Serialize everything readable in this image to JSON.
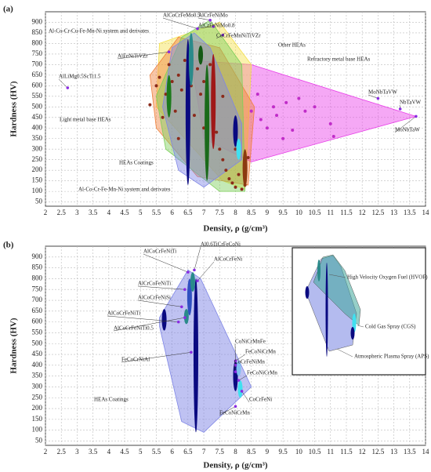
{
  "chart_data": [
    {
      "type": "scatter",
      "panel_label": "(a)",
      "xlabel": "Density, ρ (g/cm³)",
      "ylabel": "Hardness (HV)",
      "xlim": [
        2,
        14
      ],
      "ylim": [
        30,
        950
      ],
      "xticks": [
        2,
        2.5,
        3,
        3.5,
        4,
        4.5,
        5,
        5.5,
        6,
        6.5,
        7,
        7.5,
        8,
        8.5,
        9,
        9.5,
        10,
        10.5,
        11,
        11.5,
        12,
        12.5,
        13,
        13.5,
        14
      ],
      "yticks": [
        50,
        100,
        150,
        200,
        250,
        300,
        350,
        400,
        450,
        500,
        550,
        600,
        650,
        700,
        750,
        800,
        850,
        900
      ],
      "grid": true,
      "region_opacity": 0.45,
      "regions": [
        {
          "name": "Refractory metal base HEAs",
          "color": "#e83ee8",
          "x": [
            6.6,
            8.5,
            13.7,
            8.5,
            7
          ],
          "y": [
            720,
            700,
            455,
            240,
            350
          ]
        },
        {
          "name": "Other HEAs",
          "color": "#f5e04a",
          "x": [
            5.6,
            7.5,
            8.5,
            8.3,
            7.6,
            5.5
          ],
          "y": [
            800,
            900,
            700,
            110,
            150,
            500
          ]
        },
        {
          "name": "Al-Co-Cr-Cu-Fe-Mn-Ni system and derivates",
          "color": "#f0803c",
          "x": [
            5.3,
            6.2,
            7.5,
            8.6,
            8.4,
            6.8,
            5.5
          ],
          "y": [
            650,
            830,
            780,
            500,
            130,
            170,
            400
          ]
        },
        {
          "name": "Al-Co-Cr-Fe-Mn-Ni system and derivates",
          "color": "#7ccf5a",
          "x": [
            5.5,
            6.3,
            7.2,
            8.2,
            8.3,
            7.5,
            5.8
          ],
          "y": [
            550,
            830,
            910,
            700,
            100,
            100,
            300
          ]
        },
        {
          "name": "HEAs Coatings",
          "color": "#7f86e6",
          "x": [
            5.7,
            6,
            6.7,
            7.2,
            8.2,
            8.2,
            7,
            6.2
          ],
          "y": [
            500,
            780,
            850,
            780,
            420,
            250,
            120,
            200
          ]
        }
      ],
      "point_groups": [
        {
          "color": "#8b2a1a",
          "x": [
            5.3,
            5.5,
            5.6,
            5.8,
            5.9,
            6,
            6.1,
            6.2,
            6.3,
            6.4,
            6.5,
            6.6,
            6.7,
            6.8,
            6.9,
            7,
            7.1,
            7.2,
            7.3,
            7.4,
            7.5,
            7.6,
            7.7,
            7.8,
            7.9,
            8,
            8.1,
            8.2,
            8.3,
            8.4,
            5.7,
            6.2,
            7,
            7.6,
            8
          ],
          "y": [
            510,
            600,
            640,
            560,
            700,
            620,
            480,
            650,
            580,
            720,
            540,
            600,
            460,
            680,
            560,
            620,
            520,
            700,
            450,
            380,
            300,
            250,
            200,
            160,
            140,
            120,
            180,
            110,
            130,
            260,
            450,
            350,
            400,
            550,
            300
          ]
        },
        {
          "color": "#c02cc8",
          "x": [
            8.5,
            8.8,
            9,
            9.2,
            9.5,
            9.8,
            10,
            10.2,
            10.5,
            11,
            11.1,
            9.3,
            8.7,
            9.6
          ],
          "y": [
            480,
            440,
            400,
            500,
            350,
            390,
            540,
            480,
            500,
            420,
            360,
            460,
            560,
            520
          ]
        }
      ],
      "ranges": {
        "x": [
          5.9,
          6.5,
          6.6,
          6.9,
          7.1,
          7.3,
          8,
          8.1,
          8.3
        ],
        "low": [
          450,
          130,
          600,
          700,
          150,
          300,
          310,
          250,
          120
        ],
        "high": [
          650,
          820,
          850,
          790,
          700,
          750,
          460,
          350,
          300
        ],
        "colors": [
          "#1c7a1c",
          "#0a0a80",
          "#2a8a8a",
          "#145a14",
          "#1a6a1a",
          "#a01818",
          "#0a0a80",
          "#40e0f0",
          "#8b3a10"
        ]
      },
      "annotations": [
        {
          "text": "AlLiMg0.5ScTi1.5",
          "x": 2.7,
          "y": 590
        },
        {
          "text": "MoNbTaVW",
          "x": 12.5,
          "y": 540
        },
        {
          "text": "NbTaVW",
          "x": 13.2,
          "y": 490
        },
        {
          "text": "MoNbTaW",
          "x": 13.7,
          "y": 455
        },
        {
          "text": "AlCoCrFeMo0.5",
          "x": 6.8,
          "y": 870
        },
        {
          "text": "AlCrFeNiMo",
          "x": 7.2,
          "y": 910
        },
        {
          "text": "AlCrFeNiMo0.8",
          "x": 7.3,
          "y": 880
        },
        {
          "text": "CoCrFeMnNiTiVZr",
          "x": 7.6,
          "y": 840
        },
        {
          "text": "AlFeNiTiVZr",
          "x": 5.9,
          "y": 760
        }
      ],
      "notes": [
        "Light metal base HEAs"
      ]
    },
    {
      "type": "scatter",
      "panel_label": "(b)",
      "xlabel": "Density, ρ (g/cm³)",
      "ylabel": "Hardness (HV)",
      "xlim": [
        2,
        14
      ],
      "ylim": [
        30,
        950
      ],
      "xticks": [
        2,
        2.5,
        3,
        3.5,
        4,
        4.5,
        5,
        5.5,
        6,
        6.5,
        7,
        7.5,
        8,
        8.5,
        9,
        9.5,
        10,
        10.5,
        11,
        11.5,
        12,
        12.5,
        13,
        13.5,
        14
      ],
      "yticks": [
        50,
        100,
        150,
        200,
        250,
        300,
        350,
        400,
        450,
        500,
        550,
        600,
        650,
        700,
        750,
        800,
        850,
        900
      ],
      "grid": true,
      "region_opacity": 0.5,
      "regions": [
        {
          "name": "HEAs Coatings",
          "color": "#7f86e6",
          "x": [
            5.6,
            6.5,
            6.9,
            8.5,
            7,
            6.3,
            5.6
          ],
          "y": [
            620,
            840,
            800,
            300,
            90,
            140,
            580
          ]
        }
      ],
      "point_groups": [],
      "ranges": {
        "x": [
          5.75,
          6.45,
          6.55,
          6.75,
          6.65,
          8,
          8.1,
          8.15
        ],
        "low": [
          560,
          590,
          630,
          90,
          740,
          280,
          350,
          250
        ],
        "high": [
          660,
          660,
          800,
          800,
          830,
          420,
          420,
          330
        ],
        "colors": [
          "#0a0a80",
          "#2a8a8a",
          "#3050c0",
          "#0a0a80",
          "#2a8a8a",
          "#0a0a80",
          "#80c0f0",
          "#40e0f0"
        ]
      },
      "annotations": [
        {
          "text": "Al0.6TiCrFeCoNi",
          "x": 6.7,
          "y": 840
        },
        {
          "text": "AlCoCrFeNiTi",
          "x": 6.5,
          "y": 830
        },
        {
          "text": "AlCoCrFeNi",
          "x": 6.8,
          "y": 790
        },
        {
          "text": "AlCrCoFeNiTi",
          "x": 6.4,
          "y": 750
        },
        {
          "text": "AlCoCrFeNiSi",
          "x": 6.3,
          "y": 670
        },
        {
          "text": "AlCoCrFeNiTi",
          "x": 6.2,
          "y": 600
        },
        {
          "text": "AlCoCrFeNiTi0.5",
          "x": 6.4,
          "y": 620
        },
        {
          "text": "FeCoCrNiAl",
          "x": 6.6,
          "y": 460
        },
        {
          "text": "CoNiCrMnFe",
          "x": 8,
          "y": 400
        },
        {
          "text": "FeCoNiCrMn",
          "x": 8,
          "y": 420
        },
        {
          "text": "CoCrFeNiMn",
          "x": 8,
          "y": 370
        },
        {
          "text": "FeCoNiCrMn",
          "x": 8.1,
          "y": 330
        },
        {
          "text": "CoCrFeNi",
          "x": 8.2,
          "y": 280
        },
        {
          "text": "FeCoNiCrMn",
          "x": 8,
          "y": 210
        }
      ],
      "notes": [],
      "inset_labels": [
        "High Velocity Oxygen Fuel (HVOF)",
        "Cold Gas Spray (CGS)",
        "Atmospheric Plasma Spray (APS)"
      ]
    }
  ]
}
